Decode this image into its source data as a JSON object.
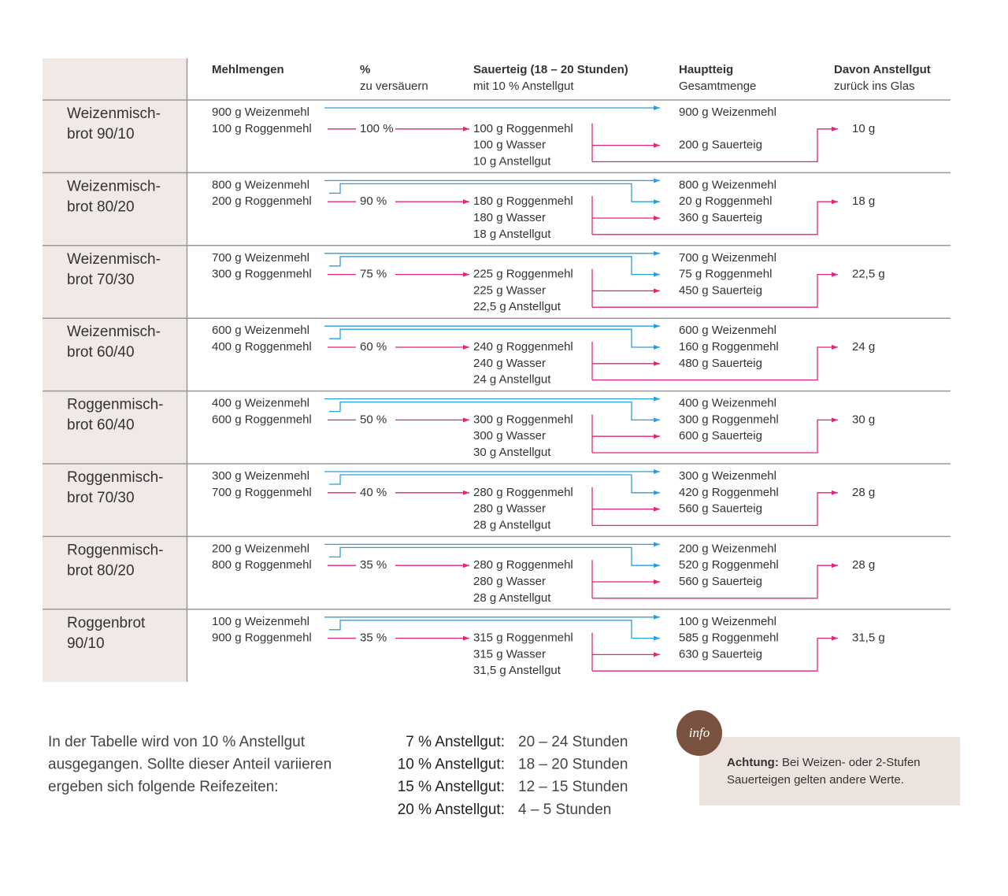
{
  "header": {
    "columns": [
      {
        "title": "Mehlmengen"
      },
      {
        "title": "%",
        "sub": "zu versäuern"
      },
      {
        "title": "Sauerteig (18 – 20 Stunden)",
        "sub": "mit 10 % Anstellgut"
      },
      {
        "title": "Hauptteig",
        "sub": "Gesamtmenge"
      },
      {
        "title": "Davon Anstellgut",
        "sub": "zurück ins Glas"
      }
    ]
  },
  "table": {
    "rows": [
      {
        "name": [
          "Weizenmisch-",
          "brot 90/10"
        ],
        "mehl": [
          "900 g Weizenmehl",
          "100 g Roggenmehl"
        ],
        "percent": "100 %",
        "sauerteig": [
          "100 g Roggenmehl",
          "100 g Wasser",
          "10 g Anstellgut"
        ],
        "hauptteig": [
          "900 g Weizenmehl",
          "200 g Sauerteig"
        ],
        "anstellgut": "10 g"
      },
      {
        "name": [
          "Weizenmisch-",
          "brot 80/20"
        ],
        "mehl": [
          "800 g Weizenmehl",
          "200 g Roggenmehl"
        ],
        "percent": "90 %",
        "sauerteig": [
          "180 g Roggenmehl",
          "180 g Wasser",
          "18 g Anstellgut"
        ],
        "hauptteig": [
          "800 g Weizenmehl",
          "20 g Roggenmehl",
          "360 g Sauerteig"
        ],
        "anstellgut": "18 g"
      },
      {
        "name": [
          "Weizenmisch-",
          "brot 70/30"
        ],
        "mehl": [
          "700 g Weizenmehl",
          "300 g Roggenmehl"
        ],
        "percent": "75 %",
        "sauerteig": [
          "225 g Roggenmehl",
          "225 g Wasser",
          "22,5 g Anstellgut"
        ],
        "hauptteig": [
          "700 g Weizenmehl",
          "75 g Roggenmehl",
          "450 g Sauerteig"
        ],
        "anstellgut": "22,5 g"
      },
      {
        "name": [
          "Weizenmisch-",
          "brot 60/40"
        ],
        "mehl": [
          "600 g Weizenmehl",
          "400 g Roggenmehl"
        ],
        "percent": "60 %",
        "sauerteig": [
          "240 g Roggenmehl",
          "240 g Wasser",
          "24 g Anstellgut"
        ],
        "hauptteig": [
          "600 g Weizenmehl",
          "160 g Roggenmehl",
          "480 g Sauerteig"
        ],
        "anstellgut": "24 g"
      },
      {
        "name": [
          "Roggenmisch-",
          "brot 60/40"
        ],
        "mehl": [
          "400 g Weizenmehl",
          "600 g Roggenmehl"
        ],
        "percent": "50 %",
        "sauerteig": [
          "300 g Roggenmehl",
          "300 g Wasser",
          "30 g Anstellgut"
        ],
        "hauptteig": [
          "400 g Weizenmehl",
          "300 g Roggenmehl",
          "600 g Sauerteig"
        ],
        "anstellgut": "30 g"
      },
      {
        "name": [
          "Roggenmisch-",
          "brot 70/30"
        ],
        "mehl": [
          "300 g Weizenmehl",
          "700 g Roggenmehl"
        ],
        "percent": "40 %",
        "sauerteig": [
          "280 g Roggenmehl",
          "280 g Wasser",
          "28 g Anstellgut"
        ],
        "hauptteig": [
          "300 g Weizenmehl",
          "420 g Roggenmehl",
          "560 g Sauerteig"
        ],
        "anstellgut": "28 g"
      },
      {
        "name": [
          "Roggenmisch-",
          "brot 80/20"
        ],
        "mehl": [
          "200 g Weizenmehl",
          "800 g Roggenmehl"
        ],
        "percent": "35 %",
        "sauerteig": [
          "280 g Roggenmehl",
          "280 g Wasser",
          "28 g Anstellgut"
        ],
        "hauptteig": [
          "200 g Weizenmehl",
          "520 g Roggenmehl",
          "560 g Sauerteig"
        ],
        "anstellgut": "28 g"
      },
      {
        "name": [
          "Roggenbrot",
          "90/10"
        ],
        "mehl": [
          "100 g Weizenmehl",
          "900 g Roggenmehl"
        ],
        "percent": "35 %",
        "sauerteig": [
          "315 g Roggenmehl",
          "315 g Wasser",
          "31,5 g Anstellgut"
        ],
        "hauptteig": [
          "100 g Weizenmehl",
          "585 g Roggenmehl",
          "630 g Sauerteig"
        ],
        "anstellgut": "31,5 g"
      }
    ]
  },
  "footer": {
    "text": [
      "In der Tabelle wird von 10 % Anstellgut",
      "ausgegangen. Sollte dieser Anteil variieren",
      "ergeben sich folgende Reifezeiten:"
    ],
    "times": [
      {
        "label": "7 % Anstellgut:",
        "value": "20 – 24 Stunden"
      },
      {
        "label": "10 % Anstellgut:",
        "value": "18 – 20 Stunden"
      },
      {
        "label": "15 % Anstellgut:",
        "value": "12 – 15 Stunden"
      },
      {
        "label": "20 % Anstellgut:",
        "value": "4 – 5 Stunden"
      }
    ],
    "info": {
      "badge": "info",
      "label": "Achtung:",
      "lines": [
        "Bei Weizen- oder 2-Stufen",
        "Sauerteigen gelten andere Werte."
      ]
    }
  }
}
